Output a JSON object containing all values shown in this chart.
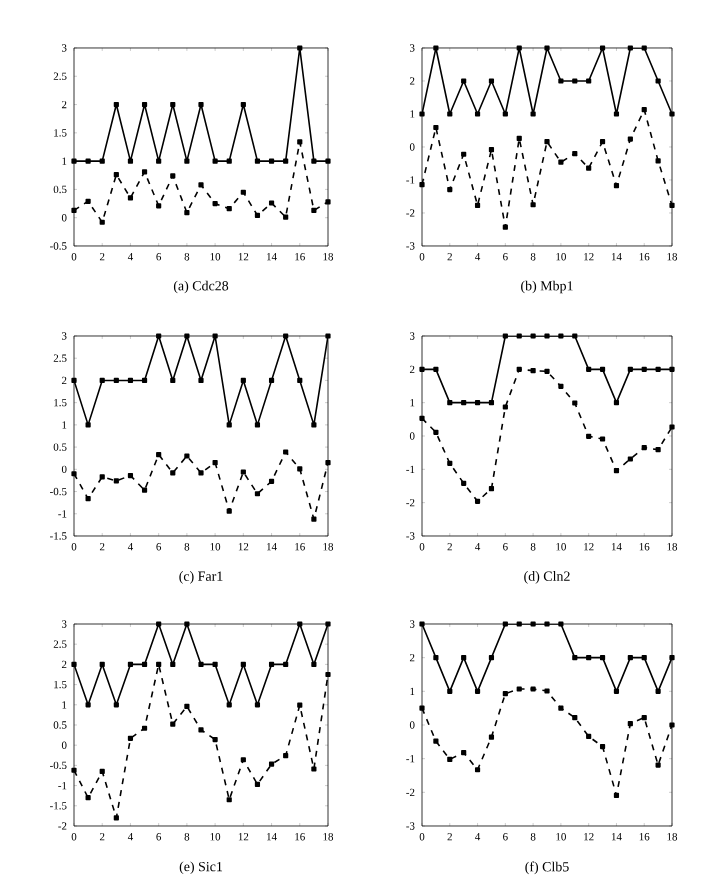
{
  "chart_data": [
    {
      "type": "line",
      "title": "(a) Cdc28",
      "x": [
        0,
        1,
        2,
        3,
        4,
        5,
        6,
        7,
        8,
        9,
        10,
        11,
        12,
        13,
        14,
        15,
        16,
        17,
        18
      ],
      "xlim": [
        0,
        18
      ],
      "xticks": [
        0,
        2,
        4,
        6,
        8,
        10,
        12,
        14,
        16,
        18
      ],
      "ylim": [
        -0.5,
        3
      ],
      "yticks": [
        -0.5,
        0,
        0.5,
        1,
        1.5,
        2,
        2.5,
        3
      ],
      "marker": "square",
      "grid": false,
      "series": [
        {
          "color": "#000000",
          "line_style": "solid",
          "values": [
            1,
            1,
            1,
            2,
            1,
            2,
            1,
            2,
            1,
            2,
            1,
            1,
            2,
            1,
            1,
            1,
            3,
            1,
            1
          ]
        },
        {
          "color": "#000000",
          "line_style": "dashed",
          "values": [
            0.13,
            0.29,
            -0.08,
            0.76,
            0.35,
            0.81,
            0.21,
            0.74,
            0.09,
            0.58,
            0.25,
            0.16,
            0.45,
            0.04,
            0.26,
            0.01,
            1.34,
            0.13,
            0.28
          ]
        }
      ]
    },
    {
      "type": "line",
      "title": "(b) Mbp1",
      "x": [
        0,
        1,
        2,
        3,
        4,
        5,
        6,
        7,
        8,
        9,
        10,
        11,
        12,
        13,
        14,
        15,
        16,
        17,
        18
      ],
      "xlim": [
        0,
        18
      ],
      "xticks": [
        0,
        2,
        4,
        6,
        8,
        10,
        12,
        14,
        16,
        18
      ],
      "ylim": [
        -3,
        3
      ],
      "yticks": [
        -3,
        -2,
        -1,
        0,
        1,
        2,
        3
      ],
      "marker": "square",
      "grid": false,
      "series": [
        {
          "color": "#000000",
          "line_style": "solid",
          "values": [
            1,
            3,
            1,
            2,
            1,
            2,
            1,
            3,
            1,
            3,
            2,
            2,
            2,
            3,
            1,
            3,
            3,
            2,
            1
          ]
        },
        {
          "color": "#000000",
          "line_style": "dashed",
          "values": [
            -1.14,
            0.59,
            -1.29,
            -0.22,
            -1.77,
            -0.08,
            -2.43,
            0.26,
            -1.75,
            0.16,
            -0.46,
            -0.2,
            -0.64,
            0.16,
            -1.17,
            0.24,
            1.13,
            -0.42,
            -1.77
          ]
        }
      ]
    },
    {
      "type": "line",
      "title": "(c) Far1",
      "x": [
        0,
        1,
        2,
        3,
        4,
        5,
        6,
        7,
        8,
        9,
        10,
        11,
        12,
        13,
        14,
        15,
        16,
        17,
        18
      ],
      "xlim": [
        0,
        18
      ],
      "xticks": [
        0,
        2,
        4,
        6,
        8,
        10,
        12,
        14,
        16,
        18
      ],
      "ylim": [
        -1.5,
        3
      ],
      "yticks": [
        -1.5,
        -1,
        -0.5,
        0,
        0.5,
        1,
        1.5,
        2,
        2.5,
        3
      ],
      "marker": "square",
      "grid": false,
      "series": [
        {
          "color": "#000000",
          "line_style": "solid",
          "values": [
            2,
            1,
            2,
            2,
            2,
            2,
            3,
            2,
            3,
            2,
            3,
            1,
            2,
            1,
            2,
            3,
            2,
            1,
            3
          ]
        },
        {
          "color": "#000000",
          "line_style": "dashed",
          "values": [
            -0.1,
            -0.66,
            -0.17,
            -0.26,
            -0.14,
            -0.47,
            0.33,
            -0.08,
            0.3,
            -0.08,
            0.15,
            -0.94,
            -0.06,
            -0.55,
            -0.27,
            0.39,
            0.01,
            -1.12,
            0.15
          ]
        }
      ]
    },
    {
      "type": "line",
      "title": "(d) Cln2",
      "x": [
        0,
        1,
        2,
        3,
        4,
        5,
        6,
        7,
        8,
        9,
        10,
        11,
        12,
        13,
        14,
        15,
        16,
        17,
        18
      ],
      "xlim": [
        0,
        18
      ],
      "xticks": [
        0,
        2,
        4,
        6,
        8,
        10,
        12,
        14,
        16,
        18
      ],
      "ylim": [
        -3,
        3
      ],
      "yticks": [
        -3,
        -2,
        -1,
        0,
        1,
        2,
        3
      ],
      "marker": "square",
      "grid": false,
      "series": [
        {
          "color": "#000000",
          "line_style": "solid",
          "values": [
            2,
            2,
            1,
            1,
            1,
            1,
            3,
            3,
            3,
            3,
            3,
            3,
            2,
            2,
            1,
            2,
            2,
            2,
            2
          ]
        },
        {
          "color": "#000000",
          "line_style": "dashed",
          "values": [
            0.53,
            0.11,
            -0.82,
            -1.42,
            -1.96,
            -1.58,
            0.87,
            2.0,
            1.96,
            1.94,
            1.49,
            0.99,
            -0.01,
            -0.09,
            -1.04,
            -0.69,
            -0.35,
            -0.41,
            0.27
          ]
        }
      ]
    },
    {
      "type": "line",
      "title": "(e) Sic1",
      "x": [
        0,
        1,
        2,
        3,
        4,
        5,
        6,
        7,
        8,
        9,
        10,
        11,
        12,
        13,
        14,
        15,
        16,
        17,
        18
      ],
      "xlim": [
        0,
        18
      ],
      "xticks": [
        0,
        2,
        4,
        6,
        8,
        10,
        12,
        14,
        16,
        18
      ],
      "ylim": [
        -2,
        3
      ],
      "yticks": [
        -2,
        -1.5,
        -1,
        -0.5,
        0,
        0.5,
        1,
        1.5,
        2,
        2.5,
        3
      ],
      "marker": "square",
      "grid": false,
      "series": [
        {
          "color": "#000000",
          "line_style": "solid",
          "values": [
            2,
            1,
            2,
            1,
            2,
            2,
            3,
            2,
            3,
            2,
            2,
            1,
            2,
            1,
            2,
            2,
            3,
            2,
            3
          ]
        },
        {
          "color": "#000000",
          "line_style": "dashed",
          "values": [
            -0.62,
            -1.3,
            -0.65,
            -1.8,
            0.17,
            0.42,
            2.0,
            0.52,
            0.96,
            0.38,
            0.14,
            -1.35,
            -0.36,
            -0.97,
            -0.47,
            -0.26,
            0.99,
            -0.59,
            1.75
          ]
        }
      ]
    },
    {
      "type": "line",
      "title": "(f) Clb5",
      "x": [
        0,
        1,
        2,
        3,
        4,
        5,
        6,
        7,
        8,
        9,
        10,
        11,
        12,
        13,
        14,
        15,
        16,
        17,
        18
      ],
      "xlim": [
        0,
        18
      ],
      "xticks": [
        0,
        2,
        4,
        6,
        8,
        10,
        12,
        14,
        16,
        18
      ],
      "ylim": [
        -3,
        3
      ],
      "yticks": [
        -3,
        -2,
        -1,
        0,
        1,
        2,
        3
      ],
      "marker": "square",
      "grid": false,
      "series": [
        {
          "color": "#000000",
          "line_style": "solid",
          "values": [
            3,
            2,
            1,
            2,
            1,
            2,
            3,
            3,
            3,
            3,
            3,
            2,
            2,
            2,
            1,
            2,
            2,
            1,
            2
          ]
        },
        {
          "color": "#000000",
          "line_style": "dashed",
          "values": [
            0.5,
            -0.48,
            -1.02,
            -0.82,
            -1.33,
            -0.36,
            0.93,
            1.07,
            1.07,
            1.01,
            0.5,
            0.22,
            -0.34,
            -0.64,
            -2.09,
            0.04,
            0.22,
            -1.19,
            0.0
          ]
        }
      ]
    }
  ]
}
